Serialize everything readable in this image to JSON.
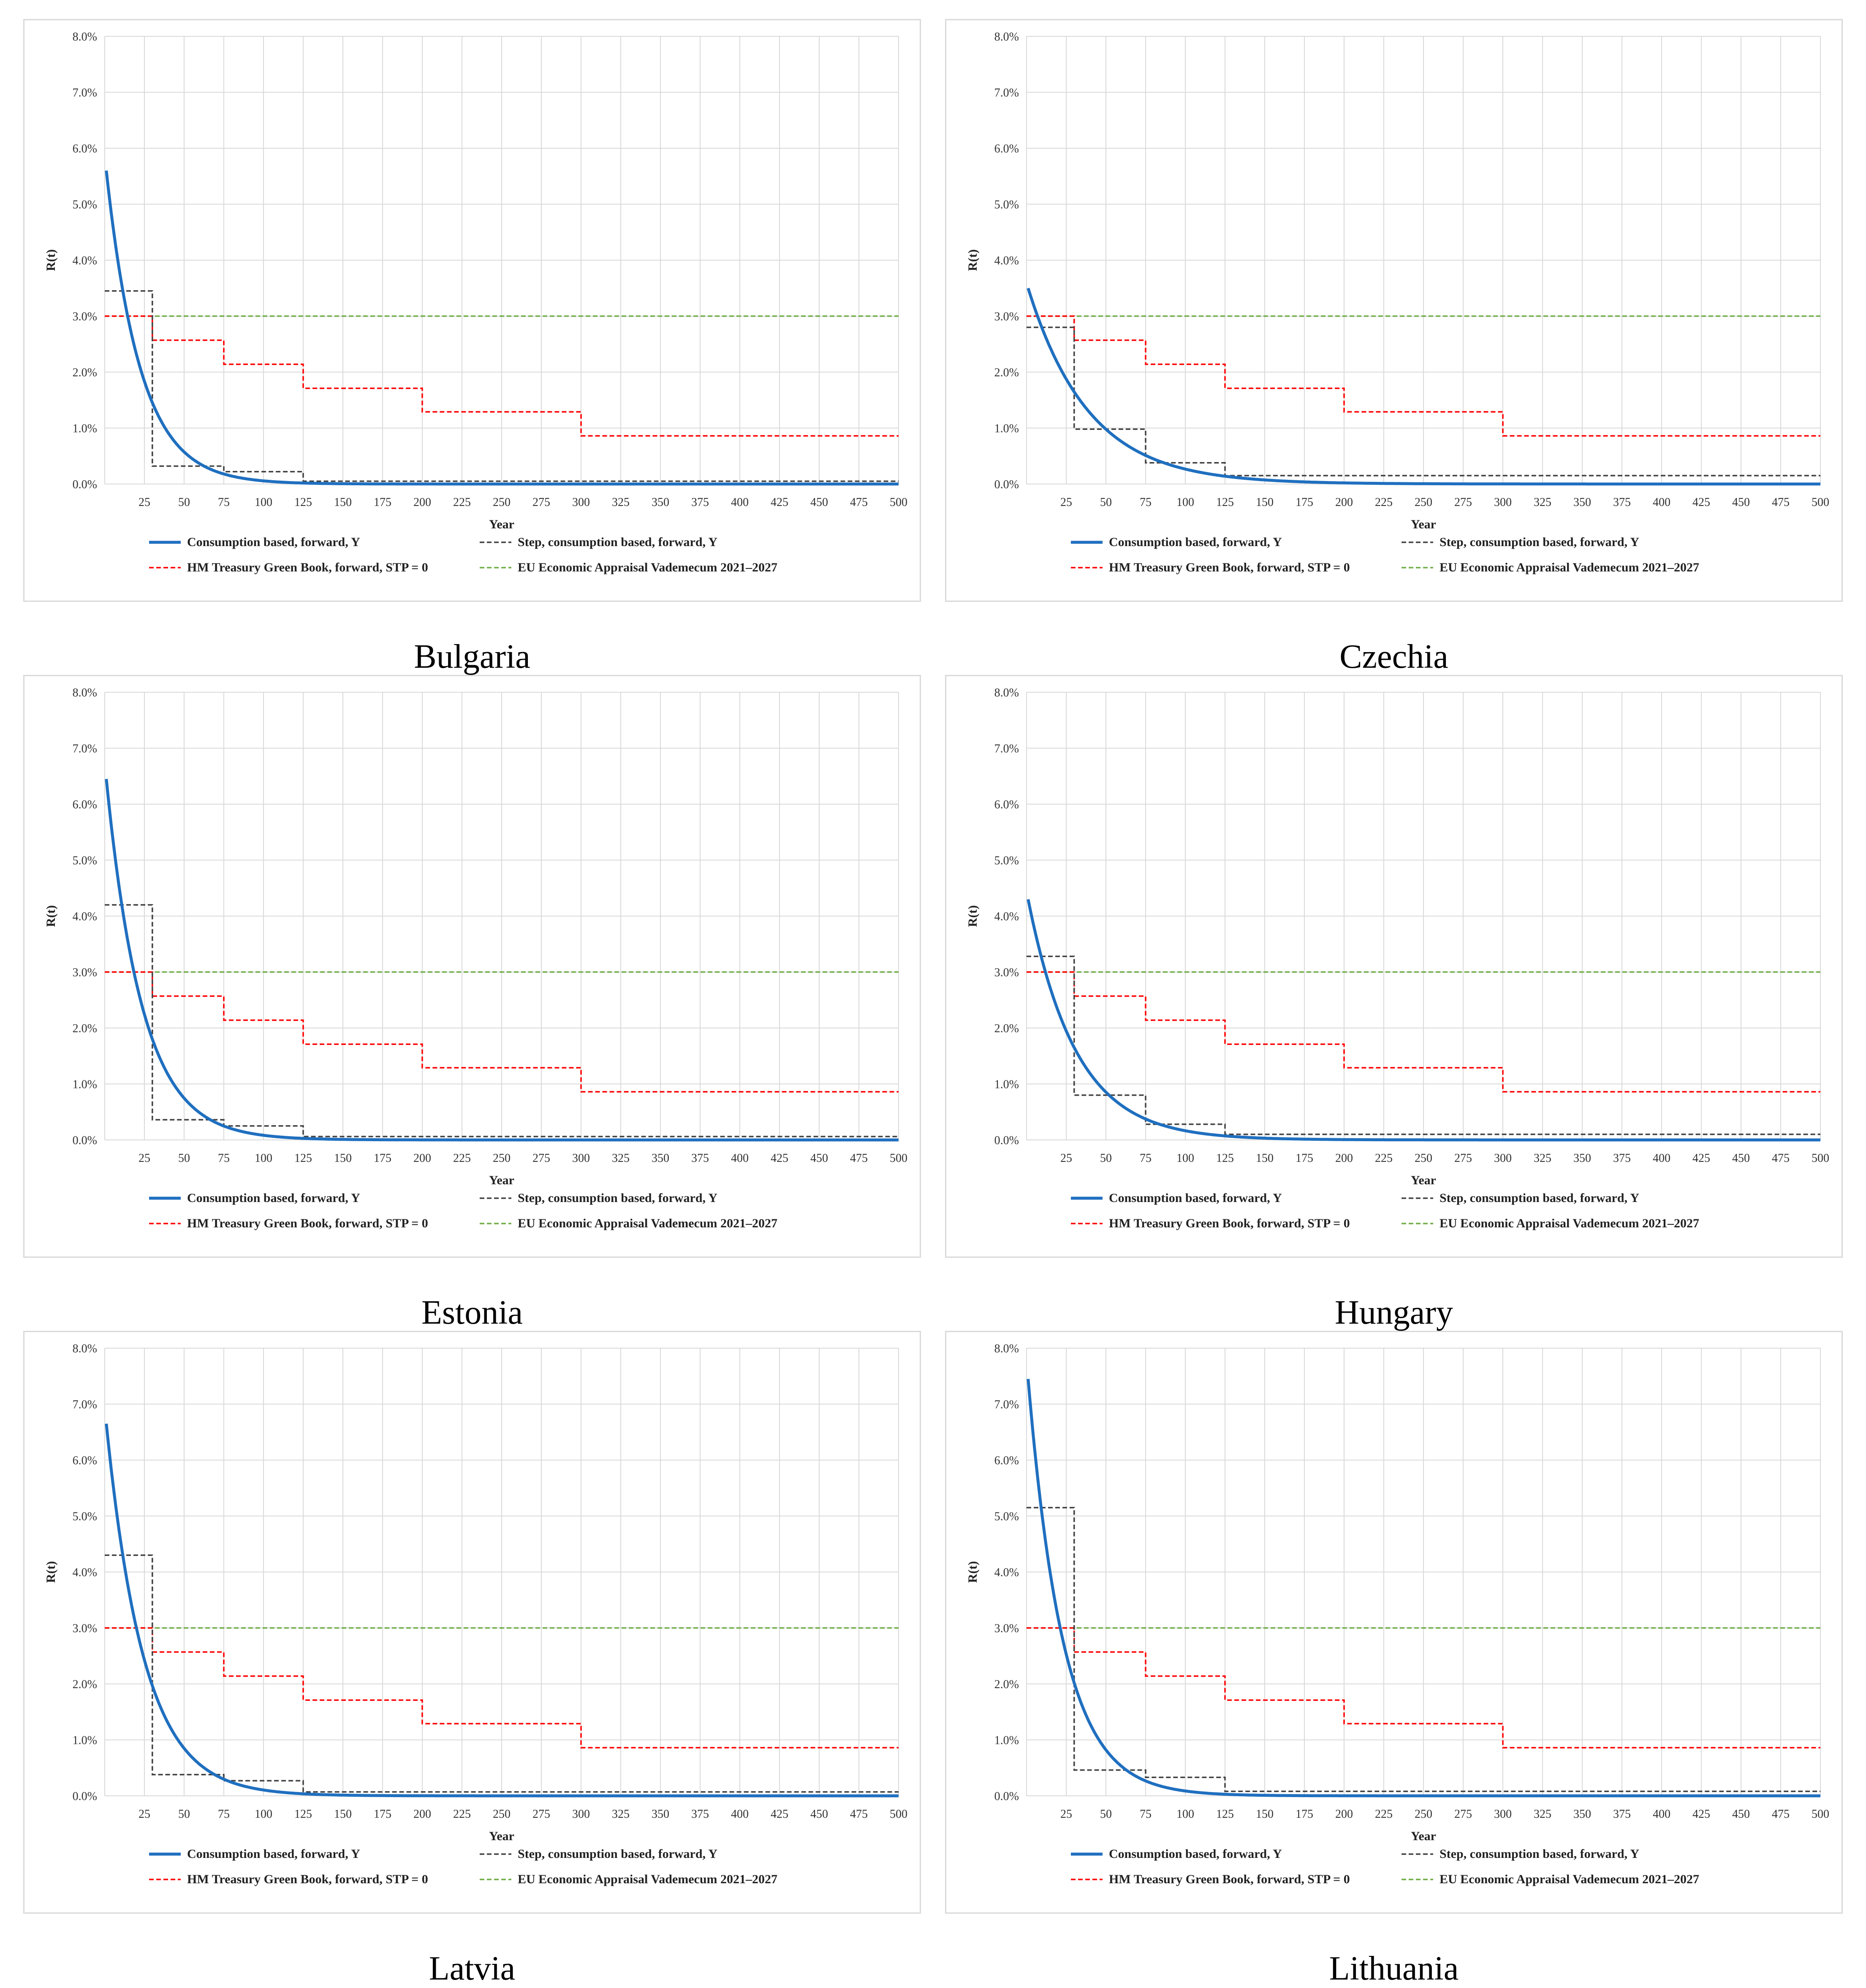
{
  "colors": {
    "consumption": "#1f6fbf",
    "step": "#404040",
    "treasury": "#ff0000",
    "eu": "#70ad47",
    "grid": "#d9d9d9"
  },
  "legend": {
    "consumption": "Consumption based, forward, Y",
    "step": "Step, consumption based, forward, Y",
    "treasury": "HM Treasury Green Book, forward, STP = 0",
    "eu": "EU Economic Appraisal Vademecum 2021–2027"
  },
  "chart_data": [
    {
      "type": "line",
      "country": "Bulgaria",
      "xlabel": "Year",
      "ylabel": "R(t)",
      "xlim": [
        0,
        500
      ],
      "ylim": [
        0,
        8
      ],
      "xticks": [
        25,
        50,
        75,
        100,
        125,
        150,
        175,
        200,
        225,
        250,
        275,
        300,
        325,
        350,
        375,
        400,
        425,
        450,
        475,
        500
      ],
      "yticks": [
        "0.0%",
        "1.0%",
        "2.0%",
        "3.0%",
        "4.0%",
        "5.0%",
        "6.0%",
        "7.0%",
        "8.0%"
      ],
      "series": [
        {
          "name": "Consumption based, forward, Y",
          "start": 5.6,
          "decay_rate": 0.0465,
          "floor": 0.0
        },
        {
          "name": "Step, consumption based, forward, Y",
          "steps": [
            [
              0,
              3.45
            ],
            [
              30,
              0.32
            ],
            [
              75,
              0.22
            ],
            [
              125,
              0.05
            ],
            [
              500,
              0.05
            ]
          ]
        },
        {
          "name": "HM Treasury Green Book, forward, STP = 0",
          "steps": [
            [
              0,
              3.0
            ],
            [
              30,
              2.57
            ],
            [
              75,
              2.14
            ],
            [
              125,
              1.71
            ],
            [
              200,
              1.29
            ],
            [
              300,
              0.86
            ],
            [
              500,
              0.86
            ]
          ]
        },
        {
          "name": "EU Economic Appraisal Vademecum 2021–2027",
          "steps": [
            [
              0,
              3.0
            ],
            [
              500,
              3.0
            ]
          ]
        }
      ]
    },
    {
      "type": "line",
      "country": "Czechia",
      "xlabel": "Year",
      "ylabel": "R(t)",
      "xlim": [
        0,
        500
      ],
      "ylim": [
        0,
        8
      ],
      "xticks": [
        25,
        50,
        75,
        100,
        125,
        150,
        175,
        200,
        225,
        250,
        275,
        300,
        325,
        350,
        375,
        400,
        425,
        450,
        475,
        500
      ],
      "yticks": [
        "0.0%",
        "1.0%",
        "2.0%",
        "3.0%",
        "4.0%",
        "5.0%",
        "6.0%",
        "7.0%",
        "8.0%"
      ],
      "series": [
        {
          "name": "Consumption based, forward, Y",
          "start": 3.5,
          "decay_rate": 0.026,
          "floor": 0.0
        },
        {
          "name": "Step, consumption based, forward, Y",
          "steps": [
            [
              0,
              2.8
            ],
            [
              30,
              0.98
            ],
            [
              75,
              0.38
            ],
            [
              125,
              0.15
            ],
            [
              500,
              0.15
            ]
          ]
        },
        {
          "name": "HM Treasury Green Book, forward, STP = 0",
          "steps": [
            [
              0,
              3.0
            ],
            [
              30,
              2.57
            ],
            [
              75,
              2.14
            ],
            [
              125,
              1.71
            ],
            [
              200,
              1.29
            ],
            [
              300,
              0.86
            ],
            [
              500,
              0.86
            ]
          ]
        },
        {
          "name": "EU Economic Appraisal Vademecum 2021–2027",
          "steps": [
            [
              0,
              3.0
            ],
            [
              500,
              3.0
            ]
          ]
        }
      ]
    },
    {
      "type": "line",
      "country": "Estonia",
      "xlabel": "Year",
      "ylabel": "R(t)",
      "xlim": [
        0,
        500
      ],
      "ylim": [
        0,
        8
      ],
      "xticks": [
        25,
        50,
        75,
        100,
        125,
        150,
        175,
        200,
        225,
        250,
        275,
        300,
        325,
        350,
        375,
        400,
        425,
        450,
        475,
        500
      ],
      "yticks": [
        "0.0%",
        "1.0%",
        "2.0%",
        "3.0%",
        "4.0%",
        "5.0%",
        "6.0%",
        "7.0%",
        "8.0%"
      ],
      "series": [
        {
          "name": "Consumption based, forward, Y",
          "start": 6.45,
          "decay_rate": 0.044,
          "floor": 0.0
        },
        {
          "name": "Step, consumption based, forward, Y",
          "steps": [
            [
              0,
              4.2
            ],
            [
              30,
              0.36
            ],
            [
              75,
              0.25
            ],
            [
              125,
              0.06
            ],
            [
              500,
              0.06
            ]
          ]
        },
        {
          "name": "HM Treasury Green Book, forward, STP = 0",
          "steps": [
            [
              0,
              3.0
            ],
            [
              30,
              2.57
            ],
            [
              75,
              2.14
            ],
            [
              125,
              1.71
            ],
            [
              200,
              1.29
            ],
            [
              300,
              0.86
            ],
            [
              500,
              0.86
            ]
          ]
        },
        {
          "name": "EU Economic Appraisal Vademecum 2021–2027",
          "steps": [
            [
              0,
              3.0
            ],
            [
              500,
              3.0
            ]
          ]
        }
      ]
    },
    {
      "type": "line",
      "country": "Hungary",
      "xlabel": "Year",
      "ylabel": "R(t)",
      "xlim": [
        0,
        500
      ],
      "ylim": [
        0,
        8
      ],
      "xticks": [
        25,
        50,
        75,
        100,
        125,
        150,
        175,
        200,
        225,
        250,
        275,
        300,
        325,
        350,
        375,
        400,
        425,
        450,
        475,
        500
      ],
      "yticks": [
        "0.0%",
        "1.0%",
        "2.0%",
        "3.0%",
        "4.0%",
        "5.0%",
        "6.0%",
        "7.0%",
        "8.0%"
      ],
      "series": [
        {
          "name": "Consumption based, forward, Y",
          "start": 4.3,
          "decay_rate": 0.033,
          "floor": 0.0
        },
        {
          "name": "Step, consumption based, forward, Y",
          "steps": [
            [
              0,
              3.28
            ],
            [
              30,
              0.8
            ],
            [
              75,
              0.28
            ],
            [
              125,
              0.1
            ],
            [
              500,
              0.1
            ]
          ]
        },
        {
          "name": "HM Treasury Green Book, forward, STP = 0",
          "steps": [
            [
              0,
              3.0
            ],
            [
              30,
              2.57
            ],
            [
              75,
              2.14
            ],
            [
              125,
              1.71
            ],
            [
              200,
              1.29
            ],
            [
              300,
              0.86
            ],
            [
              500,
              0.86
            ]
          ]
        },
        {
          "name": "EU Economic Appraisal Vademecum 2021–2027",
          "steps": [
            [
              0,
              3.0
            ],
            [
              500,
              3.0
            ]
          ]
        }
      ]
    },
    {
      "type": "line",
      "country": "Latvia",
      "xlabel": "Year",
      "ylabel": "R(t)",
      "xlim": [
        0,
        500
      ],
      "ylim": [
        0,
        8
      ],
      "xticks": [
        25,
        50,
        75,
        100,
        125,
        150,
        175,
        200,
        225,
        250,
        275,
        300,
        325,
        350,
        375,
        400,
        425,
        450,
        475,
        500
      ],
      "yticks": [
        "0.0%",
        "1.0%",
        "2.0%",
        "3.0%",
        "4.0%",
        "5.0%",
        "6.0%",
        "7.0%",
        "8.0%"
      ],
      "series": [
        {
          "name": "Consumption based, forward, Y",
          "start": 6.65,
          "decay_rate": 0.042,
          "floor": 0.0
        },
        {
          "name": "Step, consumption based, forward, Y",
          "steps": [
            [
              0,
              4.3
            ],
            [
              30,
              0.38
            ],
            [
              75,
              0.27
            ],
            [
              125,
              0.07
            ],
            [
              500,
              0.07
            ]
          ]
        },
        {
          "name": "HM Treasury Green Book, forward, STP = 0",
          "steps": [
            [
              0,
              3.0
            ],
            [
              30,
              2.57
            ],
            [
              75,
              2.14
            ],
            [
              125,
              1.71
            ],
            [
              200,
              1.29
            ],
            [
              300,
              0.86
            ],
            [
              500,
              0.86
            ]
          ]
        },
        {
          "name": "EU Economic Appraisal Vademecum 2021–2027",
          "steps": [
            [
              0,
              3.0
            ],
            [
              500,
              3.0
            ]
          ]
        }
      ]
    },
    {
      "type": "line",
      "country": "Lithuania",
      "xlabel": "Year",
      "ylabel": "R(t)",
      "xlim": [
        0,
        500
      ],
      "ylim": [
        0,
        8
      ],
      "xticks": [
        25,
        50,
        75,
        100,
        125,
        150,
        175,
        200,
        225,
        250,
        275,
        300,
        325,
        350,
        375,
        400,
        425,
        450,
        475,
        500
      ],
      "yticks": [
        "0.0%",
        "1.0%",
        "2.0%",
        "3.0%",
        "4.0%",
        "5.0%",
        "6.0%",
        "7.0%",
        "8.0%"
      ],
      "series": [
        {
          "name": "Consumption based, forward, Y",
          "start": 7.45,
          "decay_rate": 0.045,
          "floor": 0.0
        },
        {
          "name": "Step, consumption based, forward, Y",
          "steps": [
            [
              0,
              5.15
            ],
            [
              30,
              0.46
            ],
            [
              75,
              0.33
            ],
            [
              125,
              0.08
            ],
            [
              500,
              0.08
            ]
          ]
        },
        {
          "name": "HM Treasury Green Book, forward, STP = 0",
          "steps": [
            [
              0,
              3.0
            ],
            [
              30,
              2.57
            ],
            [
              75,
              2.14
            ],
            [
              125,
              1.71
            ],
            [
              200,
              1.29
            ],
            [
              300,
              0.86
            ],
            [
              500,
              0.86
            ]
          ]
        },
        {
          "name": "EU Economic Appraisal Vademecum 2021–2027",
          "steps": [
            [
              0,
              3.0
            ],
            [
              500,
              3.0
            ]
          ]
        }
      ]
    }
  ]
}
